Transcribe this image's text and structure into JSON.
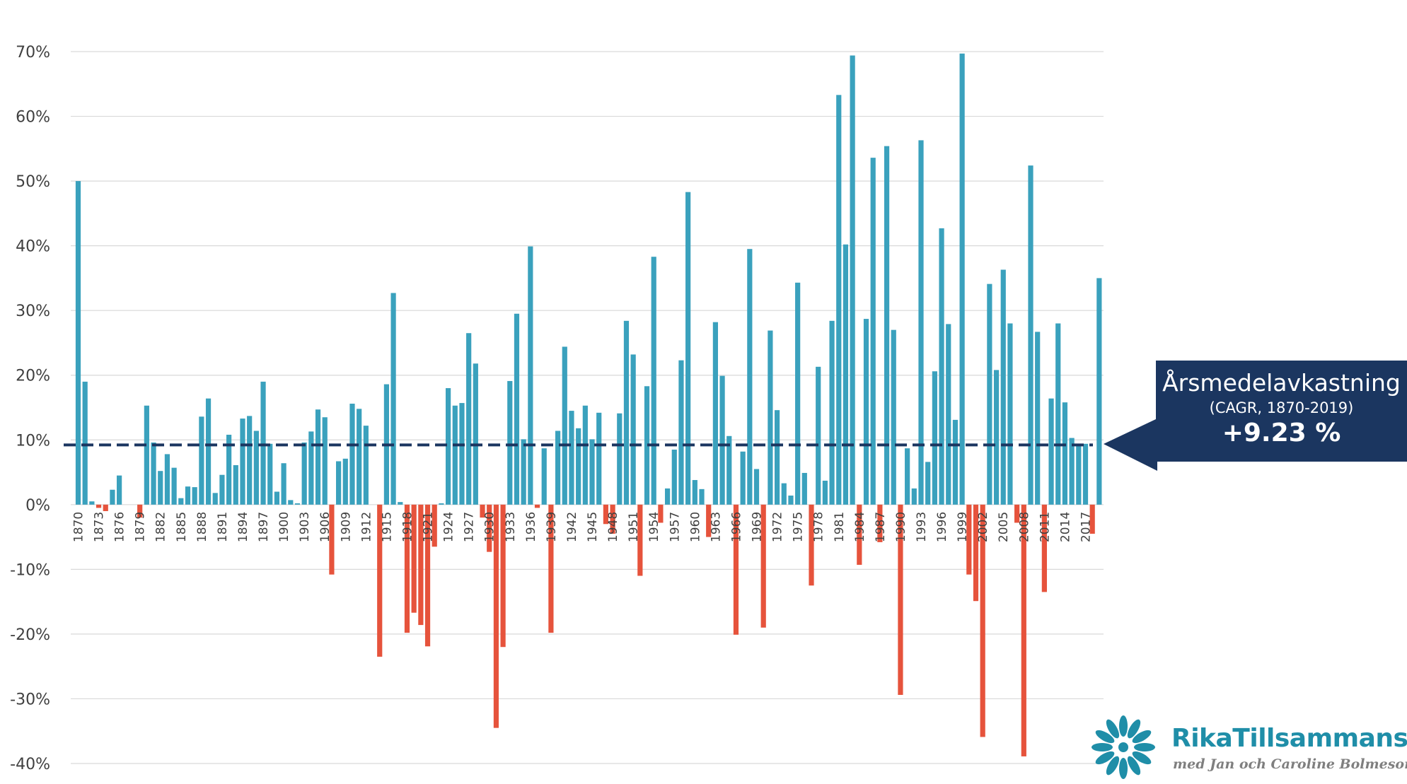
{
  "chart_data": {
    "type": "bar",
    "x": [
      1870,
      1871,
      1872,
      1873,
      1874,
      1875,
      1876,
      1877,
      1878,
      1879,
      1880,
      1881,
      1882,
      1883,
      1884,
      1885,
      1886,
      1887,
      1888,
      1889,
      1890,
      1891,
      1892,
      1893,
      1894,
      1895,
      1896,
      1897,
      1898,
      1899,
      1900,
      1901,
      1902,
      1903,
      1904,
      1905,
      1906,
      1907,
      1908,
      1909,
      1910,
      1911,
      1912,
      1913,
      1914,
      1915,
      1916,
      1917,
      1918,
      1919,
      1920,
      1921,
      1922,
      1923,
      1924,
      1925,
      1926,
      1927,
      1928,
      1929,
      1930,
      1931,
      1932,
      1933,
      1934,
      1935,
      1936,
      1937,
      1938,
      1939,
      1940,
      1941,
      1942,
      1943,
      1944,
      1945,
      1946,
      1947,
      1948,
      1949,
      1950,
      1951,
      1952,
      1953,
      1954,
      1955,
      1956,
      1957,
      1958,
      1959,
      1960,
      1961,
      1962,
      1963,
      1964,
      1965,
      1966,
      1967,
      1968,
      1969,
      1970,
      1971,
      1972,
      1973,
      1974,
      1975,
      1976,
      1977,
      1978,
      1979,
      1980,
      1981,
      1982,
      1983,
      1984,
      1985,
      1986,
      1987,
      1988,
      1989,
      1990,
      1991,
      1992,
      1993,
      1994,
      1995,
      1996,
      1997,
      1998,
      1999,
      2000,
      2001,
      2002,
      2003,
      2004,
      2005,
      2006,
      2007,
      2008,
      2009,
      2010,
      2011,
      2012,
      2013,
      2014,
      2015,
      2016,
      2017,
      2018,
      2019
    ],
    "values": [
      50,
      19,
      0.5,
      -0.5,
      -1,
      2.3,
      4.5,
      0,
      0,
      -2,
      15.3,
      9.6,
      5.2,
      7.8,
      5.7,
      1,
      2.8,
      2.7,
      13.6,
      16.4,
      1.8,
      4.6,
      10.8,
      6.1,
      13.3,
      13.7,
      11.4,
      19,
      9.4,
      2,
      6.4,
      0.7,
      0.2,
      9.6,
      11.3,
      14.7,
      13.5,
      -10.8,
      6.7,
      7.1,
      15.6,
      14.8,
      12.2,
      0,
      -23.5,
      18.6,
      32.7,
      0.4,
      -19.8,
      -16.7,
      -18.6,
      -21.9,
      -6.5,
      0.2,
      18,
      15.3,
      15.7,
      26.5,
      21.8,
      -2,
      -7.3,
      -34.5,
      -22,
      19.1,
      29.5,
      10.1,
      39.9,
      -0.5,
      8.7,
      -19.8,
      11.4,
      24.4,
      14.5,
      11.8,
      15.3,
      10.1,
      14.2,
      -3,
      -4.5,
      14.1,
      28.4,
      23.2,
      -11,
      18.3,
      38.3,
      -2.8,
      2.5,
      8.5,
      22.3,
      48.3,
      3.8,
      2.4,
      -5,
      28.2,
      19.9,
      10.6,
      -20.1,
      8.2,
      39.5,
      5.5,
      -19,
      26.9,
      14.6,
      3.3,
      1.4,
      34.3,
      4.9,
      -12.5,
      21.3,
      3.7,
      28.4,
      63.3,
      40.2,
      69.4,
      -9.3,
      28.7,
      53.6,
      -5.8,
      55.4,
      27,
      -29.4,
      8.7,
      2.5,
      56.3,
      6.6,
      20.6,
      42.7,
      27.9,
      13.1,
      69.7,
      -10.8,
      -14.9,
      -35.9,
      34.1,
      20.8,
      36.3,
      28,
      -2.8,
      -38.9,
      52.4,
      26.7,
      -13.5,
      16.4,
      28,
      15.8,
      10.3,
      9.3,
      9.4,
      -4.5,
      35
    ],
    "xtick_labels": [
      "1870",
      "1873",
      "1876",
      "1879",
      "1882",
      "1885",
      "1888",
      "1891",
      "1894",
      "1897",
      "1900",
      "1903",
      "1906",
      "1909",
      "1912",
      "1915",
      "1918",
      "1921",
      "1924",
      "1927",
      "1930",
      "1933",
      "1936",
      "1939",
      "1942",
      "1945",
      "1948",
      "1951",
      "1954",
      "1957",
      "1960",
      "1963",
      "1966",
      "1969",
      "1972",
      "1975",
      "1978",
      "1981",
      "1984",
      "1987",
      "1990",
      "1993",
      "1996",
      "1999",
      "2002",
      "2005",
      "2008",
      "2011",
      "2014",
      "2017"
    ],
    "ytick_labels": [
      "70%",
      "60%",
      "50%",
      "40%",
      "30%",
      "20%",
      "10%",
      "0%",
      "-10%",
      "-20%",
      "-30%",
      "-40%"
    ],
    "yticks": [
      70,
      60,
      50,
      40,
      30,
      20,
      10,
      0,
      -10,
      -20,
      -30,
      -40
    ],
    "ylim": [
      -40,
      70
    ],
    "average_line": 9.23,
    "grid": true,
    "title": "",
    "xlabel": "",
    "ylabel": ""
  },
  "colors": {
    "positive": "#3aa1bd",
    "negative": "#e6533c",
    "average_line": "#1b3660",
    "callout_bg": "#1b3660",
    "brand": "#1f8ea8"
  },
  "callout": {
    "title": "Årsmedelavkastning",
    "subtitle": "(CAGR, 1870-2019)",
    "value": "+9.23 %"
  },
  "logo": {
    "name": "RikaTillsammans",
    "tagline": "med Jan och Caroline Bolmeson"
  }
}
